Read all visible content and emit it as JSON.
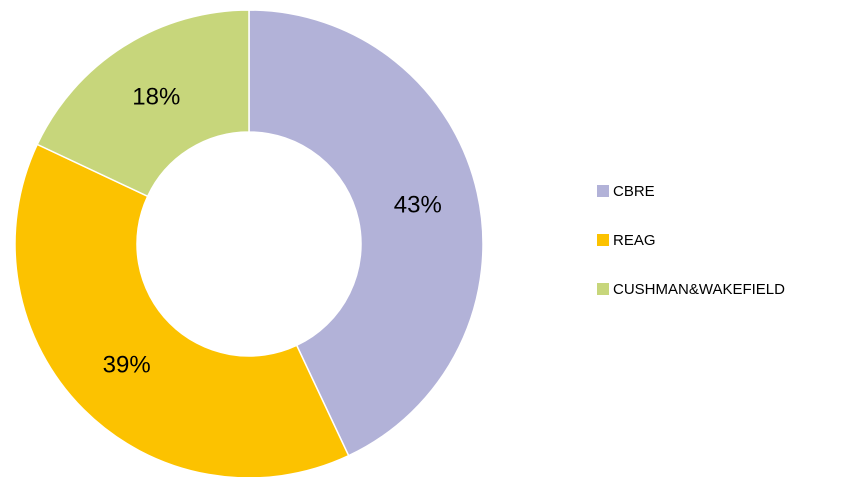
{
  "chart_data": {
    "type": "donut",
    "categories": [
      "CBRE",
      "REAG",
      "CUSHMAN&WAKEFIELD"
    ],
    "values": [
      43,
      39,
      18
    ],
    "value_labels": [
      "43%",
      "39%",
      "18%"
    ],
    "colors": [
      "#b2b2d8",
      "#fcc200",
      "#c7d67b"
    ],
    "legend": "right"
  }
}
